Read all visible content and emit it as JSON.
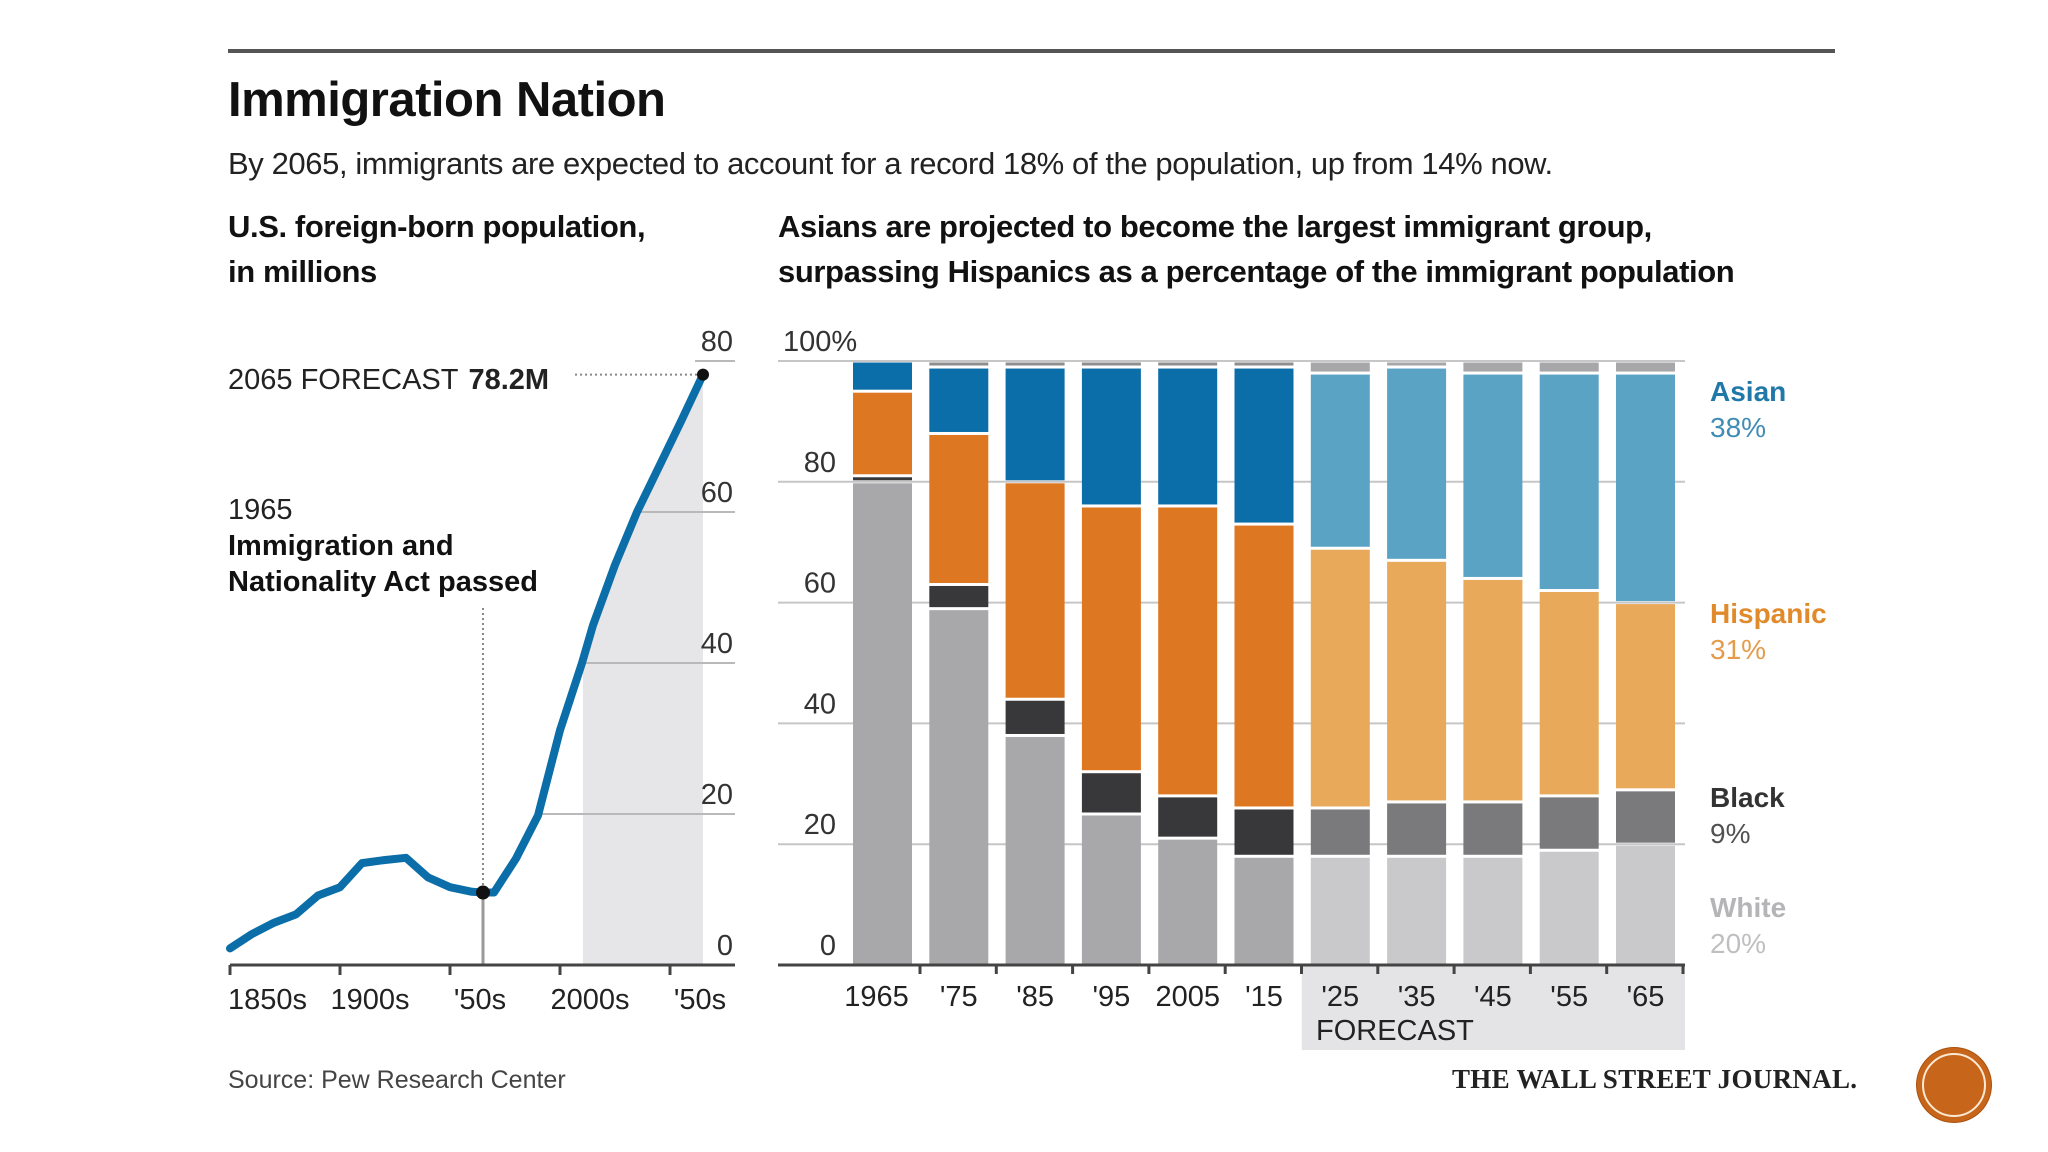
{
  "header": {
    "title": "Immigration Nation",
    "subtitle": "By 2065, immigrants are expected to account for a record 18% of the population, up from 14% now."
  },
  "left_panel": {
    "title_line1": "U.S. foreign-born population,",
    "title_line2": "in millions",
    "forecast_label": "2065 FORECAST",
    "forecast_value": "78.2M",
    "event_year": "1965",
    "event_line1": "Immigration and",
    "event_line2": "Nationality Act passed"
  },
  "right_panel": {
    "title_line1": "Asians are projected to become the largest immigrant group,",
    "title_line2": "surpassing Hispanics as a percentage of the immigrant population",
    "forecast_band_label": "FORECAST"
  },
  "footer": {
    "source": "Source: Pew Research Center",
    "publisher": "THE WALL STREET JOURNAL."
  },
  "colors": {
    "line": "#0C6EA8",
    "forecast_shade": "#E6E6E8",
    "asian": "#0C6EA8",
    "asian_forecast": "#5AA3C4",
    "hispanic": "#DD7722",
    "hispanic_forecast": "#E8A95A",
    "black": "#38383A",
    "black_forecast": "#7A797C",
    "white": "#A8A7AA",
    "white_forecast": "#C9C8CB",
    "other": "#8E8E90",
    "other_forecast": "#A7A6A9",
    "legend_asian": "#1F78A8",
    "legend_hispanic": "#E08A2C",
    "legend_black": "#333333",
    "legend_white": "#B5B5B8"
  },
  "chart_data": [
    {
      "type": "line",
      "title": "U.S. foreign-born population, in millions",
      "xlabel": "",
      "ylabel": "millions",
      "x": [
        1850,
        1860,
        1870,
        1880,
        1890,
        1900,
        1910,
        1920,
        1930,
        1940,
        1950,
        1960,
        1965,
        1970,
        1980,
        1990,
        2000,
        2010,
        2015,
        2025,
        2035,
        2045,
        2055,
        2065
      ],
      "series": [
        {
          "name": "Foreign-born population",
          "values": [
            2.2,
            4.1,
            5.6,
            6.7,
            9.2,
            10.3,
            13.5,
            13.9,
            14.2,
            11.6,
            10.3,
            9.7,
            9.6,
            9.6,
            14.1,
            19.8,
            31.1,
            40.0,
            45.0,
            53.0,
            60.0,
            66.0,
            72.0,
            78.2
          ]
        }
      ],
      "xlim": [
        1850,
        2080
      ],
      "ylim": [
        0,
        80
      ],
      "yticks": [
        0,
        20,
        40,
        60,
        80
      ],
      "ytick_labels": [
        "0",
        "20",
        "40",
        "60",
        "80"
      ],
      "xticks": [
        1850,
        1900,
        1950,
        2000,
        2050
      ],
      "xtick_labels": [
        "1850s",
        "1900s",
        "'50s",
        "2000s",
        "'50s"
      ],
      "forecast_range": [
        2015,
        2065
      ],
      "annotations": [
        {
          "x": 1965,
          "y": 9.6,
          "text": "1965 Immigration and Nationality Act passed"
        },
        {
          "x": 2065,
          "y": 78.2,
          "text": "2065 FORECAST 78.2M"
        }
      ],
      "grid": true
    },
    {
      "type": "bar",
      "stacked": true,
      "title": "Asians are projected to become the largest immigrant group, surpassing Hispanics as a percentage of the immigrant population",
      "categories": [
        "1965",
        "'75",
        "'85",
        "'95",
        "2005",
        "'15",
        "'25",
        "'35",
        "'45",
        "'55",
        "'65"
      ],
      "forecast": [
        false,
        false,
        false,
        false,
        false,
        false,
        true,
        true,
        true,
        true,
        true
      ],
      "series": [
        {
          "name": "White",
          "values": [
            80,
            59,
            38,
            25,
            21,
            18,
            18,
            18,
            18,
            19,
            20
          ]
        },
        {
          "name": "Black",
          "values": [
            1,
            4,
            6,
            7,
            7,
            8,
            8,
            9,
            9,
            9,
            9
          ]
        },
        {
          "name": "Hispanic",
          "values": [
            14,
            25,
            36,
            44,
            48,
            47,
            43,
            40,
            37,
            34,
            31
          ]
        },
        {
          "name": "Asian",
          "values": [
            5,
            11,
            19,
            23,
            23,
            26,
            29,
            32,
            34,
            36,
            38
          ]
        },
        {
          "name": "Other",
          "values": [
            0,
            1,
            1,
            1,
            1,
            1,
            2,
            1,
            2,
            2,
            2
          ]
        }
      ],
      "ylim": [
        0,
        100
      ],
      "yticks": [
        0,
        20,
        40,
        60,
        80,
        100
      ],
      "ytick_labels": [
        "0",
        "20",
        "40",
        "60",
        "80",
        "100%"
      ],
      "legend": [
        {
          "name": "Asian",
          "value": "38%"
        },
        {
          "name": "Hispanic",
          "value": "31%"
        },
        {
          "name": "Black",
          "value": "9%"
        },
        {
          "name": "White",
          "value": "20%"
        }
      ],
      "legend_position": "right",
      "grid": true
    }
  ]
}
